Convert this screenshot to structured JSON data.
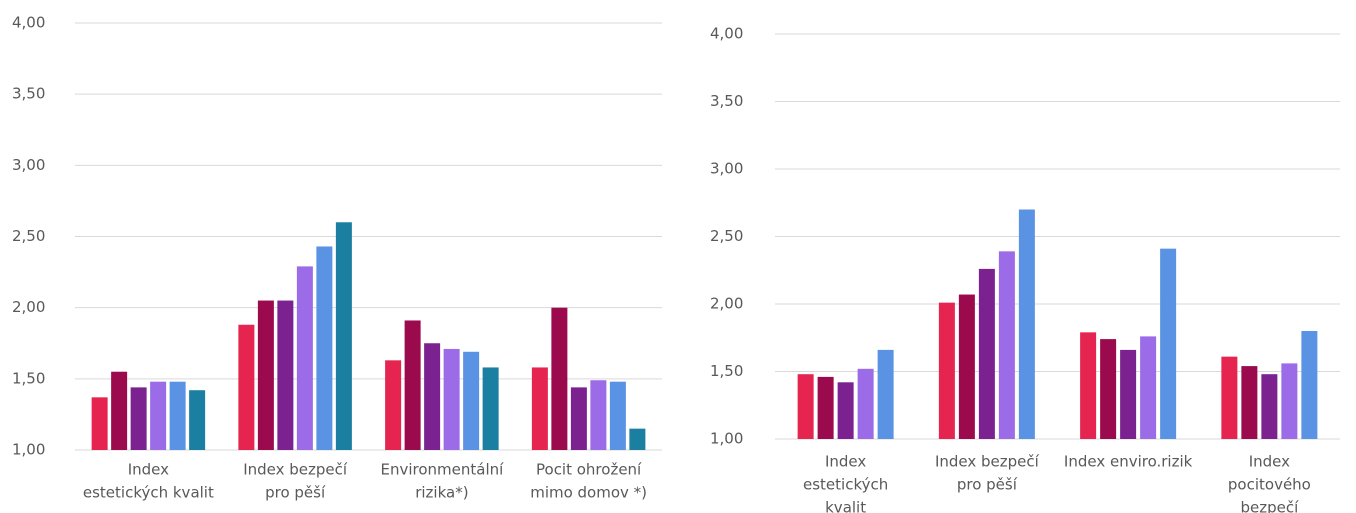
{
  "chart_data": [
    {
      "type": "bar",
      "categories": [
        [
          "Index",
          "estetických kvalit"
        ],
        [
          "Index bezpečí",
          "pro pěší"
        ],
        [
          "Environmentální",
          "rizika*)"
        ],
        [
          "Pocit ohrožení",
          "mimo domov *)"
        ]
      ],
      "series": [
        {
          "color": "#e5254f",
          "values": [
            1.37,
            1.88,
            1.63,
            1.58
          ]
        },
        {
          "color": "#9b0a4c",
          "values": [
            1.55,
            2.05,
            1.91,
            2.0
          ]
        },
        {
          "color": "#7b2290",
          "values": [
            1.44,
            2.05,
            1.75,
            1.44
          ]
        },
        {
          "color": "#9b6be8",
          "values": [
            1.48,
            2.29,
            1.71,
            1.49
          ]
        },
        {
          "color": "#5b93e4",
          "values": [
            1.48,
            2.43,
            1.69,
            1.48
          ]
        },
        {
          "color": "#1a7fa0",
          "values": [
            1.42,
            2.6,
            1.58,
            1.15
          ]
        }
      ],
      "ylim": [
        1,
        4
      ],
      "yticks": [
        {
          "value": 1,
          "label": "1,00"
        },
        {
          "value": 1.5,
          "label": "1,50"
        },
        {
          "value": 2,
          "label": "2,00"
        },
        {
          "value": 2.5,
          "label": "2,50"
        },
        {
          "value": 3,
          "label": "3,00"
        },
        {
          "value": 3.5,
          "label": "3,50"
        },
        {
          "value": 4,
          "label": "4,00"
        }
      ],
      "grid": true
    },
    {
      "type": "bar",
      "categories": [
        [
          "Index",
          "estetických",
          "kvalit"
        ],
        [
          "Index bezpečí",
          "pro pěší"
        ],
        [
          "Index enviro.rizik"
        ],
        [
          "Index",
          "pocitového",
          "bezpečí"
        ]
      ],
      "series": [
        {
          "color": "#e5254f",
          "values": [
            1.48,
            2.01,
            1.79,
            1.61
          ]
        },
        {
          "color": "#9b0a4c",
          "values": [
            1.46,
            2.07,
            1.74,
            1.54
          ]
        },
        {
          "color": "#7b2290",
          "values": [
            1.42,
            2.26,
            1.66,
            1.48
          ]
        },
        {
          "color": "#9b6be8",
          "values": [
            1.52,
            2.39,
            1.76,
            1.56
          ]
        },
        {
          "color": "#5b93e4",
          "values": [
            1.66,
            2.7,
            2.41,
            1.8
          ]
        }
      ],
      "ylim": [
        1,
        4
      ],
      "yticks": [
        {
          "value": 1,
          "label": "1,00"
        },
        {
          "value": 1.5,
          "label": "1,50"
        },
        {
          "value": 2,
          "label": "2,00"
        },
        {
          "value": 2.5,
          "label": "2,50"
        },
        {
          "value": 3,
          "label": "3,00"
        },
        {
          "value": 3.5,
          "label": "3,50"
        },
        {
          "value": 4,
          "label": "4,00"
        }
      ],
      "grid": true
    }
  ]
}
